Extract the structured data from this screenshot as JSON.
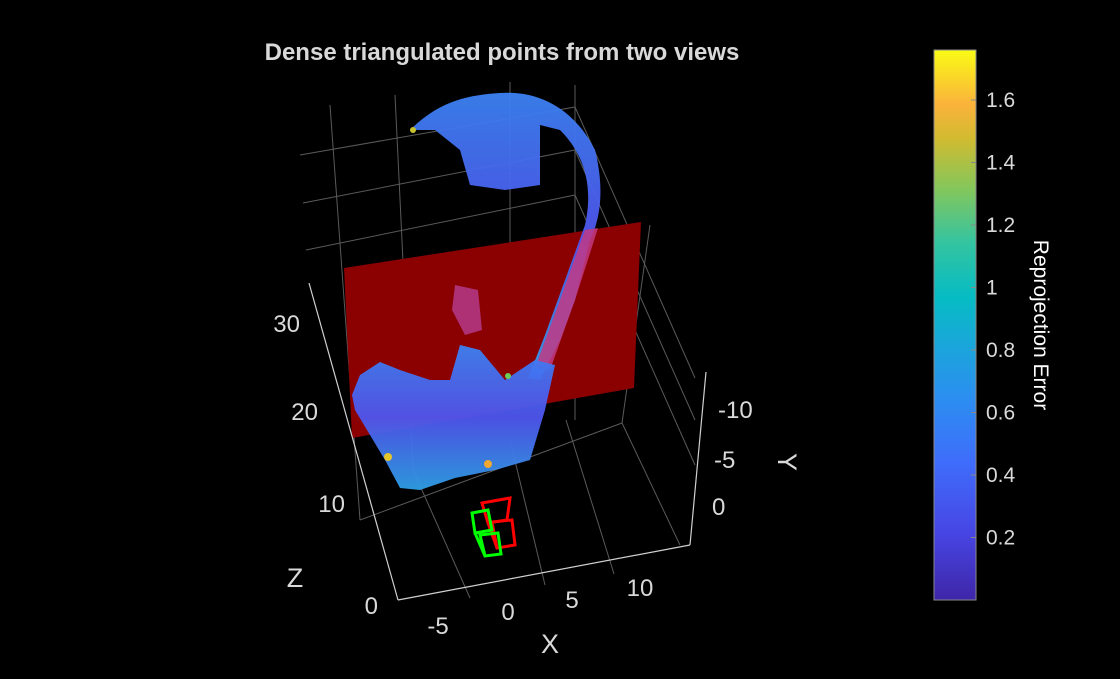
{
  "chart_data": {
    "type": "scatter3d",
    "title": "Dense triangulated points from two views",
    "xlabel": "X",
    "ylabel": "Y",
    "zlabel": "Z",
    "x_ticks": [
      "-5",
      "0",
      "5",
      "10"
    ],
    "y_ticks": [
      "-10",
      "-5",
      "0"
    ],
    "z_ticks": [
      "0",
      "10",
      "20",
      "30"
    ],
    "grid": true,
    "background": "#000000",
    "colorbar": {
      "label": "Reprojection Error",
      "colormap": "parula",
      "ticks": [
        "0.2",
        "0.4",
        "0.6",
        "0.8",
        "1",
        "1.2",
        "1.4",
        "1.6"
      ],
      "clim": [
        0,
        1.76
      ],
      "position": "right"
    },
    "plane_color": "#8b0000",
    "camera_colors": [
      "#ff0000",
      "#00ff00"
    ]
  }
}
